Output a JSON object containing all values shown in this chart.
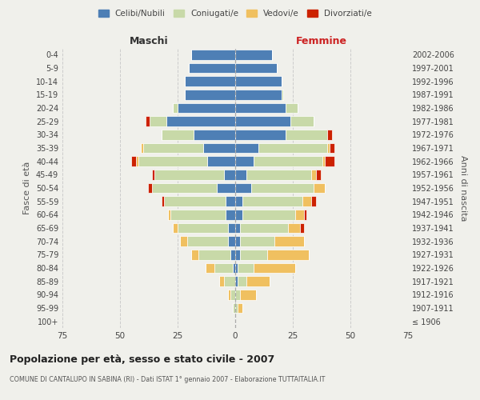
{
  "age_groups": [
    "100+",
    "95-99",
    "90-94",
    "85-89",
    "80-84",
    "75-79",
    "70-74",
    "65-69",
    "60-64",
    "55-59",
    "50-54",
    "45-49",
    "40-44",
    "35-39",
    "30-34",
    "25-29",
    "20-24",
    "15-19",
    "10-14",
    "5-9",
    "0-4"
  ],
  "birth_years": [
    "≤ 1906",
    "1907-1911",
    "1912-1916",
    "1917-1921",
    "1922-1926",
    "1927-1931",
    "1932-1936",
    "1937-1941",
    "1942-1946",
    "1947-1951",
    "1952-1956",
    "1957-1961",
    "1962-1966",
    "1967-1971",
    "1972-1976",
    "1977-1981",
    "1982-1986",
    "1987-1991",
    "1992-1996",
    "1997-2001",
    "2002-2006"
  ],
  "maschi": {
    "celibi": [
      0,
      0,
      0,
      0,
      1,
      2,
      3,
      3,
      4,
      4,
      8,
      5,
      12,
      14,
      18,
      30,
      25,
      22,
      22,
      20,
      19
    ],
    "coniugati": [
      0,
      1,
      2,
      5,
      8,
      14,
      18,
      22,
      24,
      27,
      28,
      30,
      30,
      26,
      14,
      7,
      2,
      0,
      0,
      0,
      0
    ],
    "vedovi": [
      0,
      0,
      1,
      2,
      4,
      3,
      3,
      2,
      1,
      0,
      0,
      0,
      1,
      1,
      0,
      0,
      0,
      0,
      0,
      0,
      0
    ],
    "divorziati": [
      0,
      0,
      0,
      0,
      0,
      0,
      0,
      0,
      0,
      1,
      2,
      1,
      2,
      0,
      0,
      2,
      0,
      0,
      0,
      0,
      0
    ]
  },
  "femmine": {
    "celibi": [
      0,
      0,
      0,
      1,
      1,
      2,
      2,
      2,
      3,
      3,
      7,
      5,
      8,
      10,
      22,
      24,
      22,
      20,
      20,
      18,
      16
    ],
    "coniugati": [
      0,
      1,
      2,
      4,
      7,
      12,
      15,
      21,
      23,
      26,
      27,
      28,
      30,
      30,
      18,
      10,
      5,
      1,
      0,
      0,
      0
    ],
    "vedovi": [
      0,
      2,
      7,
      10,
      18,
      18,
      13,
      5,
      4,
      4,
      5,
      2,
      1,
      1,
      0,
      0,
      0,
      0,
      0,
      0,
      0
    ],
    "divorziati": [
      0,
      0,
      0,
      0,
      0,
      0,
      0,
      2,
      1,
      2,
      0,
      2,
      4,
      2,
      2,
      0,
      0,
      0,
      0,
      0,
      0
    ]
  },
  "colors": {
    "celibi": "#4e7fb5",
    "coniugati": "#c8d9a8",
    "vedovi": "#f0c060",
    "divorziati": "#cc2200"
  },
  "xlim": 75,
  "title": "Popolazione per età, sesso e stato civile - 2007",
  "subtitle": "COMUNE DI CANTALUPO IN SABINA (RI) - Dati ISTAT 1° gennaio 2007 - Elaborazione TUTTAITALIA.IT",
  "ylabel": "Fasce di età",
  "ylabel_right": "Anni di nascita",
  "xlabel_left": "Maschi",
  "xlabel_right": "Femmine",
  "bg_color": "#f0f0eb",
  "plot_bg": "#f0f0eb"
}
